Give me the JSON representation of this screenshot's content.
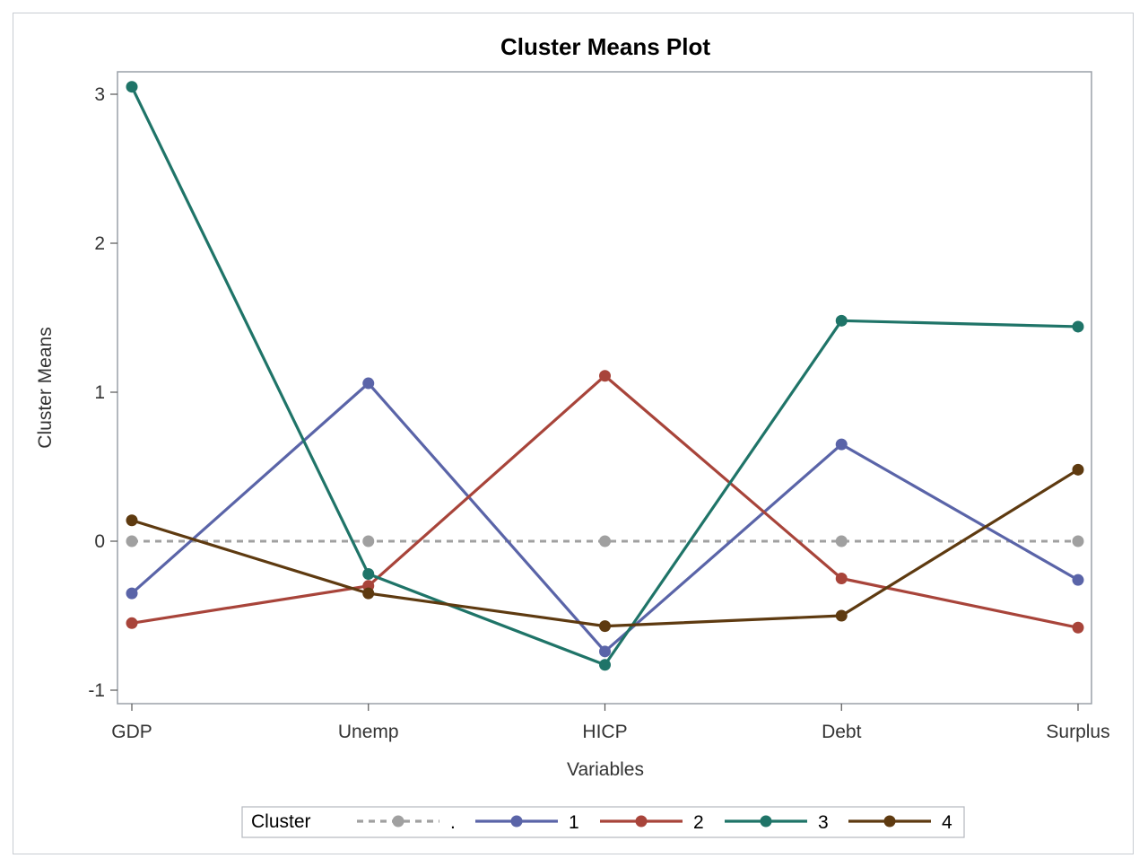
{
  "chart_data": {
    "type": "line",
    "title": "Cluster Means Plot",
    "xlabel": "Variables",
    "ylabel": "Cluster Means",
    "categories": [
      "GDP",
      "Unemp",
      "HICP",
      "Debt",
      "Surplus"
    ],
    "ylim": [
      -1.1,
      3.15
    ],
    "yticks": [
      -1,
      0,
      1,
      2,
      3
    ],
    "grid": false,
    "legend": {
      "title": "Cluster",
      "placement": "bottom-center"
    },
    "series": [
      {
        "name": ".",
        "values": [
          0,
          0,
          0,
          0,
          0
        ],
        "color": "#a0a0a0",
        "dashed": true
      },
      {
        "name": "1",
        "values": [
          -0.35,
          1.06,
          -0.74,
          0.65,
          -0.26
        ],
        "color": "#5a64a8",
        "dashed": false
      },
      {
        "name": "2",
        "values": [
          -0.55,
          -0.3,
          1.11,
          -0.25,
          -0.58
        ],
        "color": "#a8443a",
        "dashed": false
      },
      {
        "name": "3",
        "values": [
          3.05,
          -0.22,
          -0.83,
          1.48,
          1.44
        ],
        "color": "#1f7468",
        "dashed": false
      },
      {
        "name": "4",
        "values": [
          0.14,
          -0.35,
          -0.57,
          -0.5,
          0.48
        ],
        "color": "#5e3a10",
        "dashed": false
      }
    ]
  }
}
